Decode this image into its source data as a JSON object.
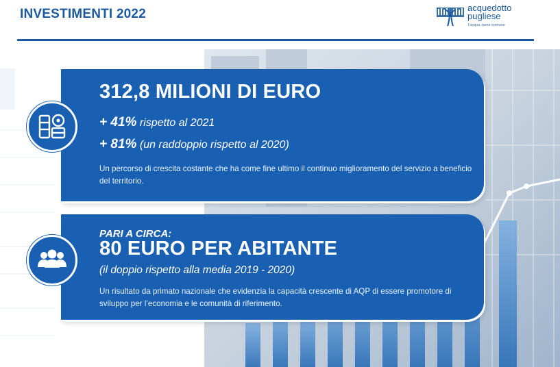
{
  "header": {
    "title": "INVESTIMENTI 2022",
    "logo": {
      "name_line1": "acquedotto",
      "name_line2": "pugliese",
      "tagline": "l'acqua, bene comune"
    }
  },
  "panel1": {
    "title": "312,8 MILIONI DI EURO",
    "line1_value": "+ 41%",
    "line1_text": "rispetto al 2021",
    "line2_value": "+ 81%",
    "line2_text": "(un raddoppio rispetto al 2020)",
    "description": "Un percorso di crescita costante che ha come fine ultimo il continuo miglioramento del servizio a beneficio del territorio.",
    "icon": "investments-icon"
  },
  "panel2": {
    "kicker": "PARI A CIRCA:",
    "title": "80 EURO PER ABITANTE",
    "subtitle": "(il doppio rispetto alla media 2019 - 2020)",
    "description": "Un risultato da primato nazionale che evidenzia la capacità crescente di AQP di essere promotore di sviluppo per l’economia e le comunità di riferimento.",
    "icon": "people-icon"
  },
  "colors": {
    "brand_blue": "#1a60b2",
    "header_blue": "#1b5aa0"
  }
}
